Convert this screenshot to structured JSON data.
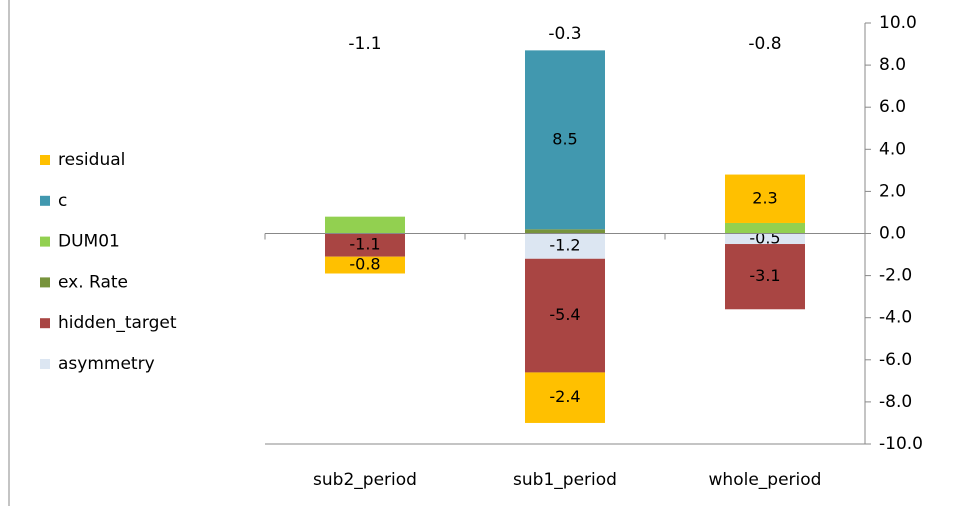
{
  "chart_data": {
    "type": "stacked_bar",
    "categories": [
      "sub2_period",
      "sub1_period",
      "whole_period"
    ],
    "series": [
      {
        "name": "residual",
        "color": "#ffc000",
        "values": [
          -0.8,
          -2.4,
          2.3
        ],
        "value_labels": [
          "-0.8",
          "-2.4",
          "2.3"
        ]
      },
      {
        "name": "c",
        "color": "#4198af",
        "values": [
          0,
          8.5,
          0
        ],
        "value_labels": [
          null,
          "8.5",
          null
        ]
      },
      {
        "name": "DUM01",
        "color": "#92d050",
        "values": [
          0.8,
          0,
          0.5
        ],
        "value_labels": [
          null,
          null,
          null
        ]
      },
      {
        "name": "ex. Rate",
        "color": "#77933c",
        "values": [
          0,
          0.2,
          0
        ],
        "value_labels": [
          null,
          null,
          null
        ]
      },
      {
        "name": "hidden_target",
        "color": "#a94543",
        "values": [
          -1.1,
          -5.4,
          -3.1
        ],
        "value_labels": [
          "-1.1",
          "-5.4",
          "-3.1"
        ]
      },
      {
        "name": "asymmetry",
        "color": "#dce6f2",
        "values": [
          0,
          -1.2,
          -0.5
        ],
        "value_labels": [
          null,
          "-1.2",
          "-0.5"
        ]
      }
    ],
    "totals": [
      -1.1,
      -0.3,
      -0.8
    ],
    "ylim": [
      -10,
      10
    ],
    "yticks": [
      {
        "value": 10,
        "label": "10.0"
      },
      {
        "value": 8,
        "label": "8.0"
      },
      {
        "value": 6,
        "label": "6.0"
      },
      {
        "value": 4,
        "label": "4.0"
      },
      {
        "value": 2,
        "label": "2.0"
      },
      {
        "value": 0,
        "label": "0.0"
      },
      {
        "value": -2,
        "label": "-2.0"
      },
      {
        "value": -4,
        "label": "-4.0"
      },
      {
        "value": -6,
        "label": "-6.0"
      },
      {
        "value": -8,
        "label": "-8.0"
      },
      {
        "value": -10,
        "label": "-10.0"
      }
    ],
    "y_axis_side": "right",
    "legend": "left",
    "grid": false
  }
}
